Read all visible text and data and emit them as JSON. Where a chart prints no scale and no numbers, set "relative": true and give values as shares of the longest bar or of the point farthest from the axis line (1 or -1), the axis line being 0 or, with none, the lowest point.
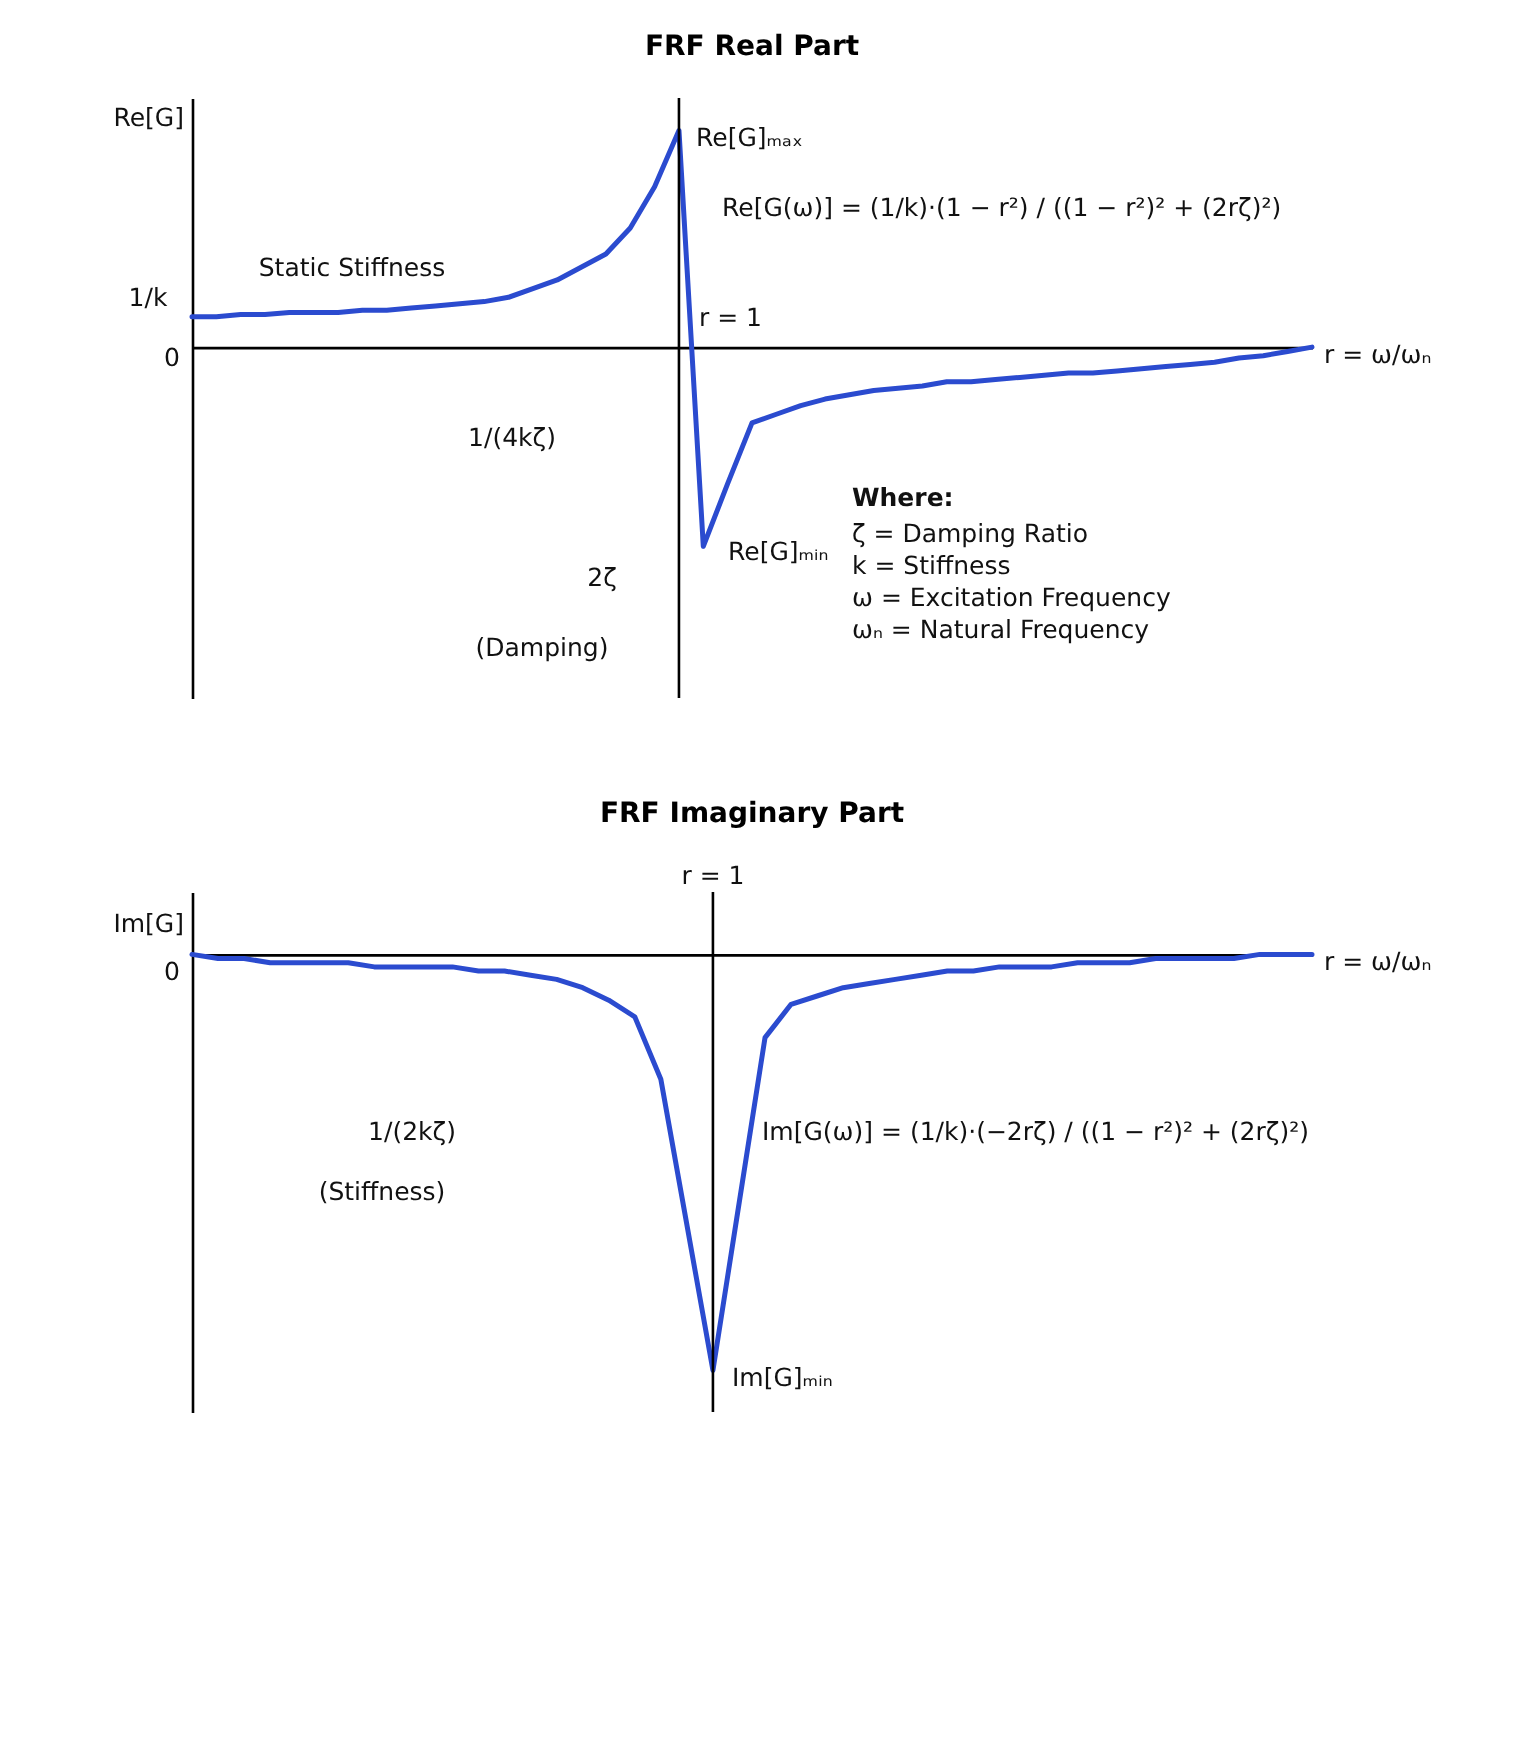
{
  "chart_data": [
    {
      "type": "line",
      "title": "FRF Real Part",
      "ylabel": "Re[G]",
      "xlabel": "r = ω/ωₙ",
      "relative": true,
      "categories": [
        null,
        null,
        null,
        null,
        null,
        null,
        null,
        null,
        null,
        null,
        null,
        null,
        null,
        null,
        null,
        null,
        null,
        null,
        null,
        null,
        null,
        null,
        null,
        null,
        null,
        null,
        null,
        null,
        null,
        null,
        null,
        null,
        null,
        null,
        null,
        null,
        null,
        null,
        null,
        null,
        null,
        null,
        null,
        null,
        null,
        null,
        null
      ],
      "series": [
        {
          "color": "#2b4bcf",
          "values": [
            0.14,
            0.14,
            0.15,
            0.15,
            0.16,
            0.16,
            0.16,
            0.17,
            0.17,
            0.18,
            0.19,
            0.2,
            0.21,
            0.23,
            0.27,
            0.31,
            0.37,
            0.43,
            0.55,
            0.74,
            1.0,
            -0.92,
            -0.63,
            -0.35,
            -0.31,
            -0.27,
            -0.24,
            -0.22,
            -0.2,
            -0.19,
            -0.18,
            -0.16,
            -0.16,
            -0.15,
            -0.14,
            -0.13,
            -0.12,
            -0.12,
            -0.11,
            -0.1,
            -0.09,
            -0.08,
            -0.07,
            -0.05,
            -0.04,
            -0.02,
            0
          ]
        }
      ],
      "ref_lines": [
        {
          "axis": "x",
          "label": "r = 1"
        }
      ],
      "annotations": [
        "1/k",
        "0",
        "Static Stiffness",
        "Re[G]ₘₐₓ",
        "1/(4kζ)",
        "2ζ",
        "(Damping)",
        "Re[G]ₘᵢₙ",
        "Re[G(ω)] = (1/k)·(1 − r²) / ((1 − r²)² + (2rζ)²)",
        "Where:",
        "ζ = Damping Ratio",
        "k = Stiffness",
        "ω = Excitation Frequency",
        "ωₙ = Natural Frequency"
      ]
    },
    {
      "type": "line",
      "title": "FRF Imaginary Part",
      "ylabel": "Im[G]",
      "xlabel": "r = ω/ωₙ",
      "relative": true,
      "categories": [
        null,
        null,
        null,
        null,
        null,
        null,
        null,
        null,
        null,
        null,
        null,
        null,
        null,
        null,
        null,
        null,
        null,
        null,
        null,
        null,
        null,
        null,
        null,
        null,
        null,
        null,
        null,
        null,
        null,
        null,
        null,
        null,
        null,
        null,
        null,
        null,
        null,
        null,
        null,
        null,
        null,
        null,
        null,
        null
      ],
      "series": [
        {
          "color": "#2b4bcf",
          "values": [
            0,
            -0.01,
            -0.01,
            -0.02,
            -0.02,
            -0.02,
            -0.02,
            -0.03,
            -0.03,
            -0.03,
            -0.03,
            -0.04,
            -0.04,
            -0.05,
            -0.06,
            -0.08,
            -0.11,
            -0.15,
            -0.3,
            -0.65,
            -1,
            -0.6,
            -0.2,
            -0.12,
            -0.1,
            -0.08,
            -0.07,
            -0.06,
            -0.05,
            -0.04,
            -0.04,
            -0.03,
            -0.03,
            -0.03,
            -0.02,
            -0.02,
            -0.02,
            -0.01,
            -0.01,
            -0.01,
            -0.01,
            0,
            0,
            0
          ]
        }
      ],
      "ref_lines": [
        {
          "axis": "x",
          "label": "r = 1"
        }
      ],
      "annotations": [
        "0",
        "1/(2kζ)",
        "(Stiffness)",
        "Im[G]ₘᵢₙ",
        "Im[G(ω)] = (1/k)·(−2rζ) / ((1 − r²)² + (2rζ)²)"
      ]
    }
  ]
}
